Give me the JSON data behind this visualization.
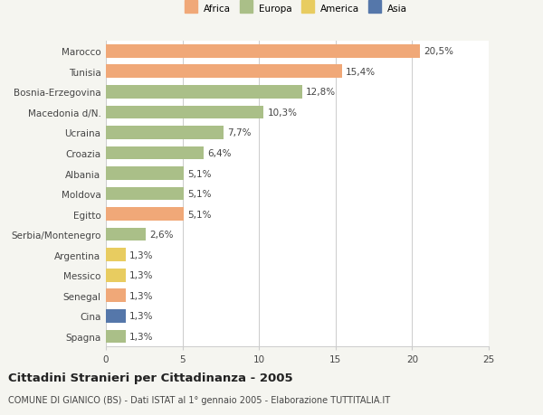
{
  "countries": [
    "Marocco",
    "Tunisia",
    "Bosnia-Erzegovina",
    "Macedonia d/N.",
    "Ucraina",
    "Croazia",
    "Albania",
    "Moldova",
    "Egitto",
    "Serbia/Montenegro",
    "Argentina",
    "Messico",
    "Senegal",
    "Cina",
    "Spagna"
  ],
  "values": [
    20.5,
    15.4,
    12.8,
    10.3,
    7.7,
    6.4,
    5.1,
    5.1,
    5.1,
    2.6,
    1.3,
    1.3,
    1.3,
    1.3,
    1.3
  ],
  "labels": [
    "20,5%",
    "15,4%",
    "12,8%",
    "10,3%",
    "7,7%",
    "6,4%",
    "5,1%",
    "5,1%",
    "5,1%",
    "2,6%",
    "1,3%",
    "1,3%",
    "1,3%",
    "1,3%",
    "1,3%"
  ],
  "colors": [
    "#F0A878",
    "#F0A878",
    "#AABF88",
    "#AABF88",
    "#AABF88",
    "#AABF88",
    "#AABF88",
    "#AABF88",
    "#F0A878",
    "#AABF88",
    "#E8CC60",
    "#E8CC60",
    "#F0A878",
    "#5577AA",
    "#AABF88"
  ],
  "legend_labels": [
    "Africa",
    "Europa",
    "America",
    "Asia"
  ],
  "legend_colors": [
    "#F0A878",
    "#AABF88",
    "#E8CC60",
    "#5577AA"
  ],
  "title": "Cittadini Stranieri per Cittadinanza - 2005",
  "subtitle": "COMUNE DI GIANICO (BS) - Dati ISTAT al 1° gennaio 2005 - Elaborazione TUTTITALIA.IT",
  "xlim": [
    0,
    25
  ],
  "xticks": [
    0,
    5,
    10,
    15,
    20,
    25
  ],
  "background_color": "#f5f5f0",
  "bar_area_color": "#ffffff",
  "grid_color": "#cccccc",
  "text_color": "#444444",
  "label_fontsize": 7.5,
  "tick_fontsize": 7.5,
  "title_fontsize": 9.5,
  "subtitle_fontsize": 7.0,
  "bar_height": 0.65
}
